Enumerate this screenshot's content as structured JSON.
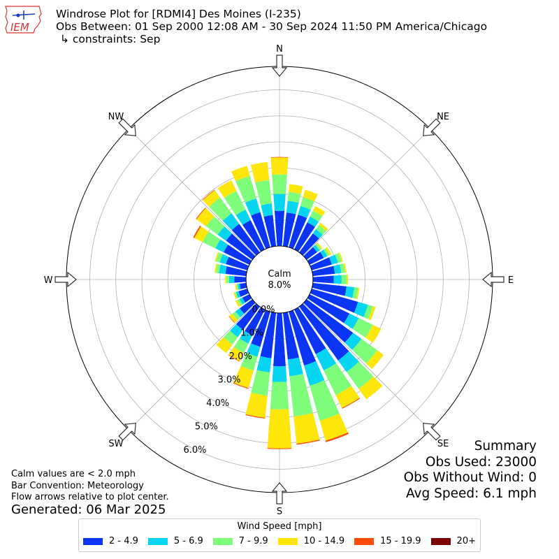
{
  "header": {
    "title": "Windrose Plot for [RDMI4] Des Moines (I-235)",
    "subtitle": "Obs Between: 01 Sep 2000 12:08 AM - 30 Sep 2024 11:50 PM America/Chicago",
    "constraint": "↳ constraints: Sep"
  },
  "logo": {
    "text": "IEM",
    "icon": "iowa-state-outline-icon"
  },
  "calm": {
    "label": "Calm",
    "value": "8.0%"
  },
  "summary": {
    "title": "Summary",
    "obs_used": "Obs Used: 23000",
    "obs_without_wind": "Obs Without Wind: 0",
    "avg_speed": "Avg Speed: 6.1 mph"
  },
  "notes": {
    "calm_note": "Calm values are < 2.0 mph",
    "bar_convention": "Bar Convention: Meteorology",
    "flow_arrows": "Flow arrows relative to plot center.",
    "generated": "Generated: 06 Mar 2025"
  },
  "chart_data": {
    "type": "windrose",
    "units": "percent of observations",
    "direction_labels": [
      "N",
      "NE",
      "E",
      "SE",
      "S",
      "SW",
      "W",
      "NW"
    ],
    "radial_ticks": [
      "0.0%",
      "1.0%",
      "2.0%",
      "3.0%",
      "4.0%",
      "5.0%",
      "6.0%"
    ],
    "radial_range": [
      0,
      6.9
    ],
    "calm_percent": 8.0,
    "bin_width_deg": 10,
    "legend_title": "Wind Speed [mph]",
    "speed_bins": [
      {
        "label": "2 - 4.9",
        "color": "#0a35f5"
      },
      {
        "label": "5 - 6.9",
        "color": "#05d5f0"
      },
      {
        "label": "7 - 9.9",
        "color": "#7dfd7a"
      },
      {
        "label": "10 - 14.9",
        "color": "#ffe60a"
      },
      {
        "label": "15 - 19.9",
        "color": "#ff4a08"
      },
      {
        "label": "20+",
        "color": "#7b0000"
      }
    ],
    "bins": [
      {
        "dir": 0,
        "values": [
          1.35,
          0.65,
          0.75,
          0.65,
          0.02,
          0
        ]
      },
      {
        "dir": 10,
        "values": [
          1.3,
          0.45,
          0.35,
          0.3,
          0,
          0
        ]
      },
      {
        "dir": 20,
        "values": [
          1.3,
          0.35,
          0.35,
          0.3,
          0,
          0
        ]
      },
      {
        "dir": 30,
        "values": [
          1.15,
          0.25,
          0.25,
          0.2,
          0,
          0
        ]
      },
      {
        "dir": 40,
        "values": [
          0.9,
          0.2,
          0.2,
          0.1,
          0,
          0
        ]
      },
      {
        "dir": 50,
        "values": [
          0.5,
          0.12,
          0.08,
          0.05,
          0,
          0
        ]
      },
      {
        "dir": 60,
        "values": [
          0.6,
          0.15,
          0.1,
          0.08,
          0,
          0
        ]
      },
      {
        "dir": 70,
        "values": [
          0.8,
          0.25,
          0.15,
          0.05,
          0,
          0
        ]
      },
      {
        "dir": 80,
        "values": [
          0.85,
          0.25,
          0.15,
          0.05,
          0,
          0
        ]
      },
      {
        "dir": 90,
        "values": [
          0.8,
          0.3,
          0.2,
          0.05,
          0,
          0
        ]
      },
      {
        "dir": 100,
        "values": [
          1.3,
          0.3,
          0.15,
          0.05,
          0,
          0
        ]
      },
      {
        "dir": 110,
        "values": [
          1.85,
          0.4,
          0.2,
          0.1,
          0,
          0
        ]
      },
      {
        "dir": 120,
        "values": [
          1.7,
          0.4,
          0.6,
          0.35,
          0,
          0
        ]
      },
      {
        "dir": 130,
        "values": [
          2.2,
          0.4,
          0.75,
          0.3,
          0,
          0
        ]
      },
      {
        "dir": 140,
        "values": [
          2.55,
          0.55,
          0.8,
          0.5,
          0,
          0
        ]
      },
      {
        "dir": 150,
        "values": [
          1.9,
          0.7,
          1.05,
          0.55,
          0.03,
          0
        ]
      },
      {
        "dir": 160,
        "values": [
          2.15,
          0.8,
          1.4,
          0.8,
          0.06,
          0
        ]
      },
      {
        "dir": 170,
        "values": [
          1.8,
          0.65,
          1.55,
          1.05,
          0.04,
          0
        ]
      },
      {
        "dir": 180,
        "values": [
          2.05,
          0.6,
          1.05,
          1.5,
          0.03,
          0
        ]
      },
      {
        "dir": 190,
        "values": [
          1.75,
          0.55,
          0.9,
          0.85,
          0.03,
          0
        ]
      },
      {
        "dir": 200,
        "values": [
          1.4,
          0.4,
          0.55,
          0.7,
          0.03,
          0
        ]
      },
      {
        "dir": 210,
        "values": [
          1.1,
          0.35,
          0.4,
          0.35,
          0.02,
          0
        ]
      },
      {
        "dir": 220,
        "values": [
          1.1,
          0.35,
          0.35,
          0.4,
          0,
          0
        ]
      },
      {
        "dir": 230,
        "values": [
          0.6,
          0.2,
          0.15,
          0.15,
          0.02,
          0
        ]
      },
      {
        "dir": 240,
        "values": [
          0.3,
          0.12,
          0.1,
          0.08,
          0,
          0
        ]
      },
      {
        "dir": 250,
        "values": [
          0.35,
          0.1,
          0.05,
          0.05,
          0,
          0
        ]
      },
      {
        "dir": 260,
        "values": [
          0.25,
          0.08,
          0.05,
          0.05,
          0,
          0
        ]
      },
      {
        "dir": 270,
        "values": [
          0.45,
          0.2,
          0.1,
          0.05,
          0,
          0
        ]
      },
      {
        "dir": 280,
        "values": [
          0.8,
          0.25,
          0.12,
          0.05,
          0,
          0
        ]
      },
      {
        "dir": 290,
        "values": [
          0.85,
          0.25,
          0.15,
          0.05,
          0,
          0
        ]
      },
      {
        "dir": 300,
        "values": [
          1.1,
          0.35,
          0.55,
          0.35,
          0.05,
          0
        ]
      },
      {
        "dir": 310,
        "values": [
          1.25,
          0.4,
          0.55,
          0.45,
          0.03,
          0
        ]
      },
      {
        "dir": 320,
        "values": [
          1.35,
          0.5,
          0.75,
          0.35,
          0.02,
          0
        ]
      },
      {
        "dir": 330,
        "values": [
          1.25,
          0.45,
          0.8,
          0.45,
          0,
          0
        ]
      },
      {
        "dir": 340,
        "values": [
          1.4,
          0.55,
          0.9,
          0.4,
          0,
          0
        ]
      },
      {
        "dir": 350,
        "values": [
          1.2,
          0.45,
          0.9,
          0.7,
          0,
          0
        ]
      }
    ]
  }
}
